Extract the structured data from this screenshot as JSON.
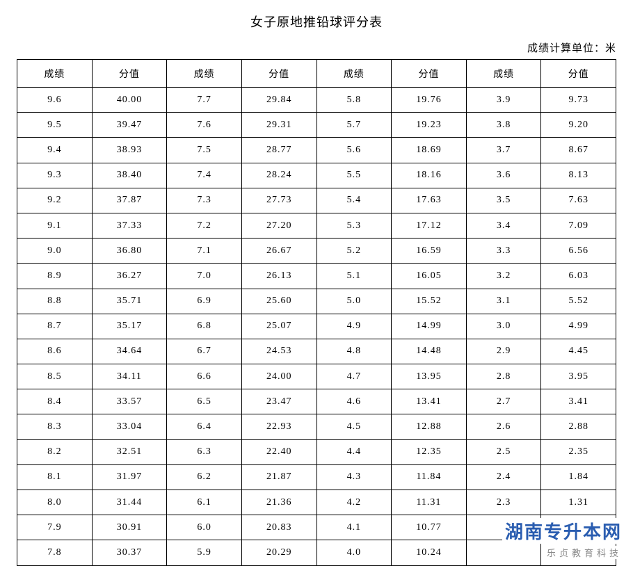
{
  "title": "女子原地推铅球评分表",
  "unit_label": "成绩计算单位：米",
  "table": {
    "headers": [
      "成绩",
      "分值",
      "成绩",
      "分值",
      "成绩",
      "分值",
      "成绩",
      "分值"
    ],
    "rows": [
      [
        "9.6",
        "40.00",
        "7.7",
        "29.84",
        "5.8",
        "19.76",
        "3.9",
        "9.73"
      ],
      [
        "9.5",
        "39.47",
        "7.6",
        "29.31",
        "5.7",
        "19.23",
        "3.8",
        "9.20"
      ],
      [
        "9.4",
        "38.93",
        "7.5",
        "28.77",
        "5.6",
        "18.69",
        "3.7",
        "8.67"
      ],
      [
        "9.3",
        "38.40",
        "7.4",
        "28.24",
        "5.5",
        "18.16",
        "3.6",
        "8.13"
      ],
      [
        "9.2",
        "37.87",
        "7.3",
        "27.73",
        "5.4",
        "17.63",
        "3.5",
        "7.63"
      ],
      [
        "9.1",
        "37.33",
        "7.2",
        "27.20",
        "5.3",
        "17.12",
        "3.4",
        "7.09"
      ],
      [
        "9.0",
        "36.80",
        "7.1",
        "26.67",
        "5.2",
        "16.59",
        "3.3",
        "6.56"
      ],
      [
        "8.9",
        "36.27",
        "7.0",
        "26.13",
        "5.1",
        "16.05",
        "3.2",
        "6.03"
      ],
      [
        "8.8",
        "35.71",
        "6.9",
        "25.60",
        "5.0",
        "15.52",
        "3.1",
        "5.52"
      ],
      [
        "8.7",
        "35.17",
        "6.8",
        "25.07",
        "4.9",
        "14.99",
        "3.0",
        "4.99"
      ],
      [
        "8.6",
        "34.64",
        "6.7",
        "24.53",
        "4.8",
        "14.48",
        "2.9",
        "4.45"
      ],
      [
        "8.5",
        "34.11",
        "6.6",
        "24.00",
        "4.7",
        "13.95",
        "2.8",
        "3.95"
      ],
      [
        "8.4",
        "33.57",
        "6.5",
        "23.47",
        "4.6",
        "13.41",
        "2.7",
        "3.41"
      ],
      [
        "8.3",
        "33.04",
        "6.4",
        "22.93",
        "4.5",
        "12.88",
        "2.6",
        "2.88"
      ],
      [
        "8.2",
        "32.51",
        "6.3",
        "22.40",
        "4.4",
        "12.35",
        "2.5",
        "2.35"
      ],
      [
        "8.1",
        "31.97",
        "6.2",
        "21.87",
        "4.3",
        "11.84",
        "2.4",
        "1.84"
      ],
      [
        "8.0",
        "31.44",
        "6.1",
        "21.36",
        "4.2",
        "11.31",
        "2.3",
        "1.31"
      ],
      [
        "7.9",
        "30.91",
        "6.0",
        "20.83",
        "4.1",
        "10.77",
        "",
        ""
      ],
      [
        "7.8",
        "30.37",
        "5.9",
        "20.29",
        "4.0",
        "10.24",
        "",
        ""
      ]
    ]
  },
  "watermark": {
    "main": "湖南专升本网",
    "sub": "乐贞教育科技"
  }
}
